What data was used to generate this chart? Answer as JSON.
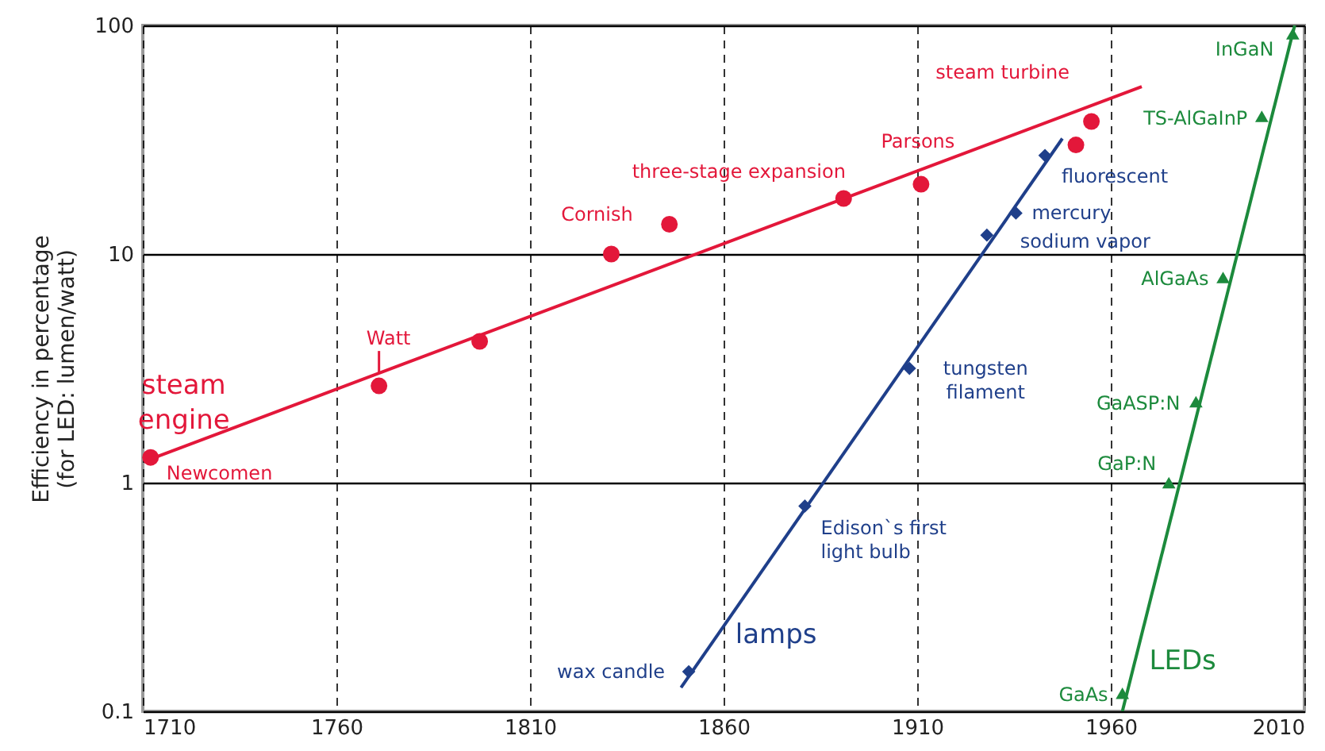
{
  "chart_data": {
    "type": "scatter",
    "ylabel": "Efficiency in percentage\n(for LED: lumen/watt)",
    "xlim": [
      1710,
      2010
    ],
    "xticks": [
      1710,
      1760,
      1810,
      1860,
      1910,
      1960,
      2010
    ],
    "ylim": [
      0.1,
      100
    ],
    "yticks": [
      0.1,
      1,
      10,
      100
    ],
    "log": "y",
    "grid": true,
    "series": [
      {
        "name": "steam engine",
        "marker": "circle",
        "color": "#e3173a",
        "x": [
          1712,
          1771,
          1797,
          1831,
          1846,
          1891,
          1911,
          1951,
          1955
        ],
        "values": [
          1.29,
          2.65,
          4.15,
          10,
          13.5,
          17.5,
          20.2,
          30,
          38
        ]
      },
      {
        "type": "line",
        "color": "#e3173a",
        "x": [
          1711,
          1968
        ],
        "values": [
          1.25,
          54
        ]
      },
      {
        "name": "lamps",
        "marker": "diamond",
        "color": "#1f3f8a",
        "x": [
          1851,
          1881,
          1908,
          1928,
          1935.5,
          1943
        ],
        "values": [
          0.149,
          0.79,
          3.16,
          12.1,
          15.1,
          27
        ]
      },
      {
        "type": "line",
        "color": "#1f3f8a",
        "x": [
          1849,
          1947.5
        ],
        "values": [
          0.127,
          32
        ]
      },
      {
        "name": "LEDs",
        "marker": "triangle",
        "color": "#1c8a3c",
        "x": [
          1963,
          1975,
          1982,
          1989,
          1999,
          2007
        ],
        "values": [
          0.12,
          1,
          2.26,
          7.9,
          40,
          92
        ]
      },
      {
        "type": "line",
        "color": "#1c8a3c",
        "x": [
          1963,
          2007.5
        ],
        "values": [
          0.1,
          100
        ]
      }
    ],
    "annotations": [
      {
        "text": "Newcomen",
        "x": 1712,
        "y": 1.29
      },
      {
        "text": "Watt",
        "x": 1771,
        "y": 2.65
      },
      {
        "text": "Cornish",
        "x": 1831,
        "y": 10
      },
      {
        "text": "three-stage expansion",
        "x": 1891,
        "y": 17.5
      },
      {
        "text": "Parsons",
        "x": 1911,
        "y": 20.2
      },
      {
        "text": "steam turbine",
        "x": 1955,
        "y": 38
      },
      {
        "text": "fluorescent",
        "x": 1943,
        "y": 27
      },
      {
        "text": "mercury",
        "x": 1935.5,
        "y": 15.1
      },
      {
        "text": "sodium vapor",
        "x": 1928,
        "y": 12.1
      },
      {
        "text": "tungsten\nfilament",
        "x": 1908,
        "y": 3.16
      },
      {
        "text": "Edison`s first\nlight bulb",
        "x": 1881,
        "y": 0.79
      },
      {
        "text": "wax candle",
        "x": 1851,
        "y": 0.149
      },
      {
        "text": "GaAs",
        "x": 1963,
        "y": 0.12
      },
      {
        "text": "GaP:N",
        "x": 1975,
        "y": 1
      },
      {
        "text": "GaASP:N",
        "x": 1982,
        "y": 2.26
      },
      {
        "text": "AlGaAs",
        "x": 1989,
        "y": 7.9
      },
      {
        "text": "TS-AlGaInP",
        "x": 1999,
        "y": 40
      },
      {
        "text": "InGaN",
        "x": 2007,
        "y": 92
      }
    ]
  }
}
